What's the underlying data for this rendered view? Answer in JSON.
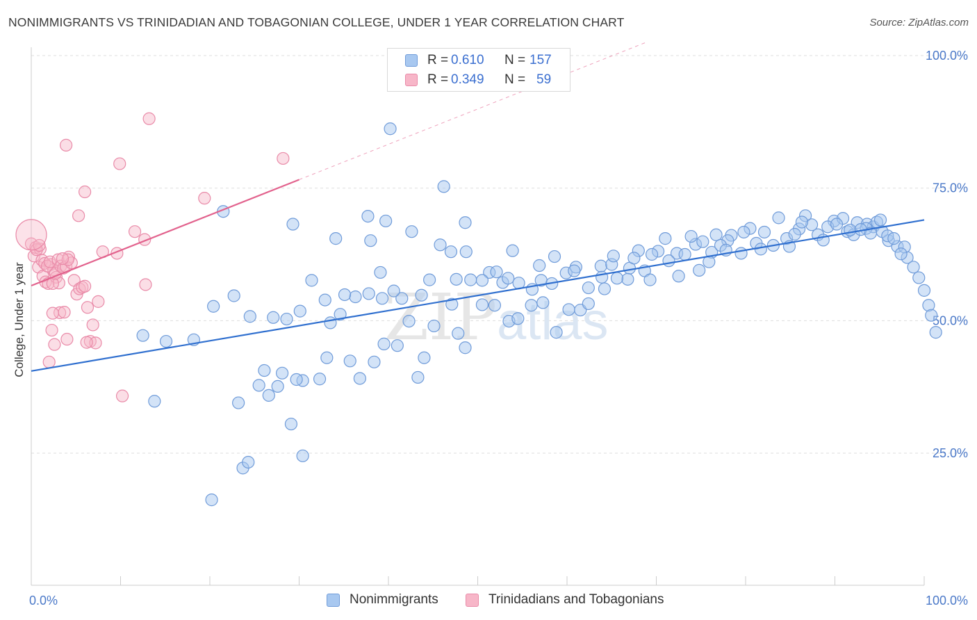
{
  "header": {
    "title": "NONIMMIGRANTS VS TRINIDADIAN AND TOBAGONIAN COLLEGE, UNDER 1 YEAR CORRELATION CHART",
    "source": "Source: ZipAtlas.com"
  },
  "watermark": {
    "part1": "ZIP",
    "part2": "atlas"
  },
  "colors": {
    "blue_fill": "#a8c8f0",
    "blue_stroke": "#6f9bd9",
    "blue_line": "#2f6fcf",
    "pink_fill": "#f7b6c8",
    "pink_stroke": "#e98aa8",
    "pink_line": "#e2628d",
    "accent_text": "#3b6fd0",
    "grid": "#dddddd"
  },
  "legend_top": {
    "rows": [
      {
        "r_label": "R =",
        "r_value": "0.610",
        "n_label": "N =",
        "n_value": "157",
        "series": "blue"
      },
      {
        "r_label": "R =",
        "r_value": "0.349",
        "n_label": "N =",
        "n_value": "59",
        "series": "pink"
      }
    ]
  },
  "legend_bottom": {
    "items": [
      {
        "label": "Nonimmigrants",
        "series": "blue"
      },
      {
        "label": "Trinidadians and Tobagonians",
        "series": "pink"
      }
    ]
  },
  "chart_data": {
    "type": "scatter",
    "title": "NONIMMIGRANTS VS TRINIDADIAN AND TOBAGONIAN COLLEGE, UNDER 1 YEAR CORRELATION CHART",
    "xlabel": "",
    "ylabel": "College, Under 1 year",
    "xlim": [
      0,
      100
    ],
    "ylim": [
      5,
      103
    ],
    "x_tick_labels": [
      "0.0%",
      "100.0%"
    ],
    "y_tick_labels": [
      "25.0%",
      "50.0%",
      "75.0%",
      "100.0%"
    ],
    "y_tick_values": [
      25,
      50,
      75,
      100
    ],
    "grid": true,
    "legend_position": "top-center",
    "series": [
      {
        "name": "Nonimmigrants",
        "color": "blue",
        "R": 0.61,
        "N": 157,
        "trend": {
          "x0": 0,
          "y0": 40.5,
          "x1": 100,
          "y1": 69.0
        },
        "points": [
          [
            40.2,
            86.2
          ],
          [
            21.5,
            70.6
          ],
          [
            46.2,
            75.3
          ],
          [
            29.3,
            68.2
          ],
          [
            34.1,
            65.5
          ],
          [
            37.7,
            69.7
          ],
          [
            38.0,
            65.1
          ],
          [
            39.7,
            68.8
          ],
          [
            42.6,
            66.8
          ],
          [
            45.8,
            64.3
          ],
          [
            48.6,
            68.5
          ],
          [
            47.0,
            63.0
          ],
          [
            31.4,
            57.6
          ],
          [
            39.1,
            59.1
          ],
          [
            44.6,
            57.7
          ],
          [
            48.7,
            63.0
          ],
          [
            47.6,
            57.8
          ],
          [
            53.9,
            63.2
          ],
          [
            56.9,
            60.4
          ],
          [
            51.3,
            59.1
          ],
          [
            52.8,
            57.2
          ],
          [
            57.1,
            57.6
          ],
          [
            58.6,
            62.1
          ],
          [
            59.9,
            59.0
          ],
          [
            61.0,
            60.1
          ],
          [
            63.8,
            60.3
          ],
          [
            65.0,
            60.6
          ],
          [
            67.0,
            59.9
          ],
          [
            68.7,
            59.4
          ],
          [
            72.3,
            62.7
          ],
          [
            73.2,
            62.5
          ],
          [
            74.4,
            64.4
          ],
          [
            75.2,
            64.9
          ],
          [
            76.2,
            62.9
          ],
          [
            78.4,
            66.1
          ],
          [
            80.5,
            67.4
          ],
          [
            82.1,
            66.7
          ],
          [
            83.7,
            69.4
          ],
          [
            86.7,
            69.8
          ],
          [
            88.1,
            66.2
          ],
          [
            89.9,
            68.8
          ],
          [
            91.4,
            66.8
          ],
          [
            92.5,
            68.5
          ],
          [
            93.6,
            68.2
          ],
          [
            94.3,
            67.7
          ],
          [
            95.3,
            66.8
          ],
          [
            96.0,
            65.1
          ],
          [
            97.0,
            64.0
          ],
          [
            98.1,
            61.9
          ],
          [
            98.8,
            60.1
          ],
          [
            99.4,
            58.1
          ],
          [
            100.0,
            55.7
          ],
          [
            100.5,
            52.9
          ],
          [
            100.8,
            51.0
          ],
          [
            101.3,
            47.8
          ],
          [
            76.7,
            66.2
          ],
          [
            78.0,
            65.1
          ],
          [
            79.8,
            66.7
          ],
          [
            81.2,
            64.6
          ],
          [
            84.6,
            65.5
          ],
          [
            86.0,
            67.3
          ],
          [
            87.4,
            68.1
          ],
          [
            89.2,
            67.7
          ],
          [
            90.9,
            69.3
          ],
          [
            92.1,
            66.2
          ],
          [
            93.5,
            67.4
          ],
          [
            94.7,
            68.6
          ],
          [
            95.9,
            66.0
          ],
          [
            97.8,
            63.9
          ],
          [
            71.0,
            65.5
          ],
          [
            70.2,
            63.1
          ],
          [
            69.5,
            62.5
          ],
          [
            68.0,
            63.2
          ],
          [
            73.9,
            65.9
          ],
          [
            77.2,
            64.2
          ],
          [
            66.8,
            57.8
          ],
          [
            65.6,
            58.0
          ],
          [
            64.2,
            56.0
          ],
          [
            62.4,
            56.2
          ],
          [
            60.8,
            59.4
          ],
          [
            58.3,
            57.0
          ],
          [
            56.1,
            55.9
          ],
          [
            54.6,
            57.1
          ],
          [
            53.4,
            58.0
          ],
          [
            52.1,
            59.2
          ],
          [
            50.5,
            57.6
          ],
          [
            49.2,
            57.7
          ],
          [
            47.1,
            53.1
          ],
          [
            43.7,
            54.8
          ],
          [
            41.5,
            54.2
          ],
          [
            40.6,
            55.6
          ],
          [
            39.3,
            54.2
          ],
          [
            37.8,
            55.1
          ],
          [
            36.3,
            54.5
          ],
          [
            35.1,
            54.9
          ],
          [
            34.6,
            51.2
          ],
          [
            33.5,
            49.6
          ],
          [
            32.9,
            53.9
          ],
          [
            30.1,
            51.8
          ],
          [
            28.6,
            50.3
          ],
          [
            27.1,
            50.6
          ],
          [
            24.5,
            50.8
          ],
          [
            22.7,
            54.7
          ],
          [
            20.4,
            52.7
          ],
          [
            18.2,
            46.4
          ],
          [
            15.1,
            46.1
          ],
          [
            13.8,
            34.8
          ],
          [
            12.5,
            47.2
          ],
          [
            23.2,
            34.5
          ],
          [
            25.5,
            37.8
          ],
          [
            26.1,
            40.6
          ],
          [
            27.6,
            37.6
          ],
          [
            28.1,
            40.1
          ],
          [
            30.4,
            38.7
          ],
          [
            33.1,
            43.0
          ],
          [
            35.7,
            42.4
          ],
          [
            36.8,
            39.1
          ],
          [
            39.5,
            45.6
          ],
          [
            42.3,
            49.9
          ],
          [
            43.3,
            39.3
          ],
          [
            45.1,
            49.0
          ],
          [
            47.8,
            47.6
          ],
          [
            50.5,
            53.0
          ],
          [
            51.9,
            52.9
          ],
          [
            53.5,
            49.9
          ],
          [
            54.5,
            50.4
          ],
          [
            56.0,
            52.9
          ],
          [
            57.3,
            53.4
          ],
          [
            58.8,
            47.8
          ],
          [
            60.2,
            52.1
          ],
          [
            61.5,
            52.0
          ],
          [
            62.4,
            53.2
          ],
          [
            48.6,
            44.9
          ],
          [
            44.0,
            43.0
          ],
          [
            41.0,
            45.3
          ],
          [
            38.4,
            42.2
          ],
          [
            32.3,
            39.0
          ],
          [
            29.7,
            38.9
          ],
          [
            26.6,
            35.9
          ],
          [
            23.7,
            22.2
          ],
          [
            24.3,
            23.3
          ],
          [
            20.2,
            16.2
          ],
          [
            29.1,
            30.5
          ],
          [
            30.4,
            24.5
          ],
          [
            63.9,
            58.2
          ],
          [
            65.2,
            62.2
          ],
          [
            67.5,
            61.8
          ],
          [
            69.3,
            57.7
          ],
          [
            71.4,
            61.3
          ],
          [
            72.5,
            58.4
          ],
          [
            74.8,
            59.5
          ],
          [
            75.9,
            61.1
          ],
          [
            77.8,
            63.3
          ],
          [
            79.5,
            62.7
          ],
          [
            81.7,
            63.5
          ],
          [
            83.1,
            64.2
          ],
          [
            84.9,
            64.0
          ],
          [
            85.5,
            66.3
          ],
          [
            86.3,
            68.6
          ],
          [
            88.7,
            65.2
          ],
          [
            90.2,
            68.2
          ],
          [
            91.7,
            67.1
          ],
          [
            92.9,
            67.2
          ],
          [
            94.0,
            66.5
          ],
          [
            95.1,
            69.0
          ],
          [
            96.6,
            65.5
          ],
          [
            97.4,
            62.6
          ]
        ]
      },
      {
        "name": "Trinidadians and Tobagonians",
        "color": "pink",
        "R": 0.349,
        "N": 59,
        "trend": {
          "x0": 0,
          "y0": 56.6,
          "x1": 30,
          "y1": 76.6,
          "dash_to": {
            "x": 100,
            "y": 123.3
          }
        },
        "points": [
          [
            0.0,
            64.5
          ],
          [
            0.3,
            62.2
          ],
          [
            0.5,
            63.8
          ],
          [
            0.8,
            60.1
          ],
          [
            1.0,
            63.5
          ],
          [
            1.3,
            58.4
          ],
          [
            1.6,
            57.3
          ],
          [
            1.9,
            57.0
          ],
          [
            2.2,
            60.6
          ],
          [
            2.5,
            59.6
          ],
          [
            2.8,
            58.2
          ],
          [
            3.1,
            57.1
          ],
          [
            0.6,
            63.4
          ],
          [
            0.9,
            64.2
          ],
          [
            1.2,
            61.4
          ],
          [
            1.5,
            60.8
          ],
          [
            1.8,
            60.3
          ],
          [
            2.1,
            61.1
          ],
          [
            2.4,
            57.0
          ],
          [
            2.7,
            58.9
          ],
          [
            3.0,
            61.5
          ],
          [
            3.3,
            60.3
          ],
          [
            3.6,
            59.9
          ],
          [
            3.9,
            60.2
          ],
          [
            4.2,
            62.0
          ],
          [
            4.5,
            60.9
          ],
          [
            4.8,
            57.6
          ],
          [
            5.1,
            55.0
          ],
          [
            5.4,
            56.0
          ],
          [
            5.7,
            56.3
          ],
          [
            6.0,
            56.5
          ],
          [
            6.3,
            52.5
          ],
          [
            6.6,
            46.1
          ],
          [
            6.9,
            49.2
          ],
          [
            7.2,
            45.8
          ],
          [
            7.5,
            53.6
          ],
          [
            2.3,
            48.2
          ],
          [
            2.6,
            45.5
          ],
          [
            2.0,
            42.2
          ],
          [
            3.2,
            51.5
          ],
          [
            2.4,
            51.4
          ],
          [
            3.7,
            51.6
          ],
          [
            4.0,
            46.5
          ],
          [
            6.2,
            45.9
          ],
          [
            10.2,
            35.8
          ],
          [
            8.0,
            63.0
          ],
          [
            9.6,
            62.7
          ],
          [
            4.1,
            61.5
          ],
          [
            5.3,
            69.8
          ],
          [
            6.0,
            74.3
          ],
          [
            3.9,
            83.1
          ],
          [
            9.9,
            79.6
          ],
          [
            13.2,
            88.1
          ],
          [
            11.6,
            66.8
          ],
          [
            12.7,
            65.3
          ],
          [
            19.4,
            73.1
          ],
          [
            12.8,
            56.8
          ],
          [
            28.2,
            80.6
          ],
          [
            3.5,
            61.7
          ]
        ]
      }
    ]
  }
}
